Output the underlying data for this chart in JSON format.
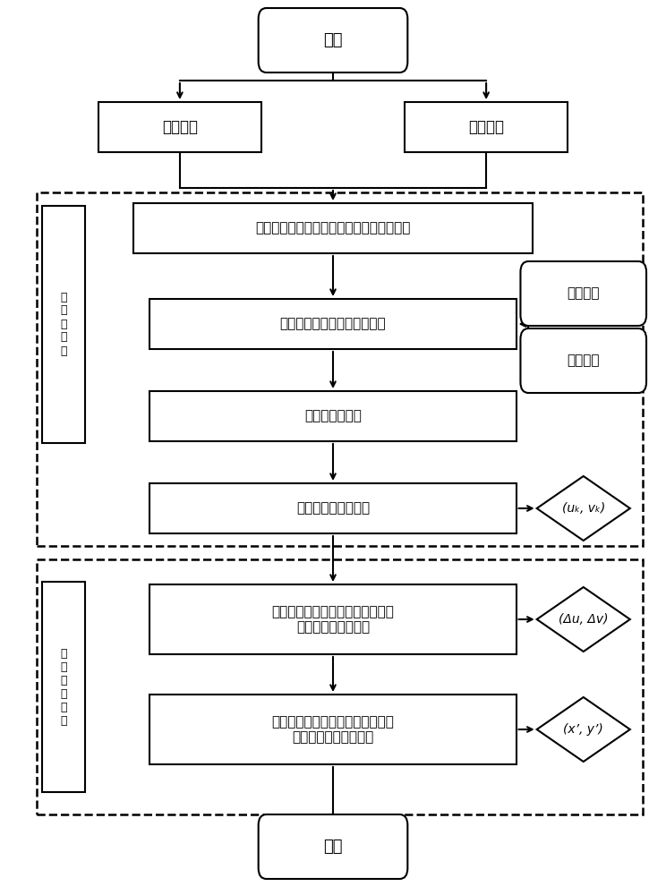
{
  "bg_color": "#ffffff",
  "start_text": "开始",
  "end_text": "结束",
  "template_text": "模板图像",
  "target_img_text": "待测图像",
  "get_proj_text": "分别获取模板图像和待测图像的圆投影向量",
  "correct_text": "对得到的圆投影向量进行校正",
  "norm_corr_text": "归一化相关函数",
  "get_int_text": "获得整数级像素位移",
  "sub_pixel_text": "采用基于图像梯度函数的亚像素算\n法获取亚像素级位移",
  "combine_text": "结合整数级像素位移和亚像素级位\n移计算最终位移测量值",
  "light_corr_text": "光照校正",
  "noise_corr_text": "噪声校正",
  "uk_vk_text": "(uₖ, vₖ)",
  "delta_uv_text": "(Δu, Δv)",
  "xy_prime_text": "(x’, y’)",
  "coarse_label_text": "粗\n测\n量\n过\n程",
  "fine_label_text": "精\n确\n测\n量\n过\n程"
}
